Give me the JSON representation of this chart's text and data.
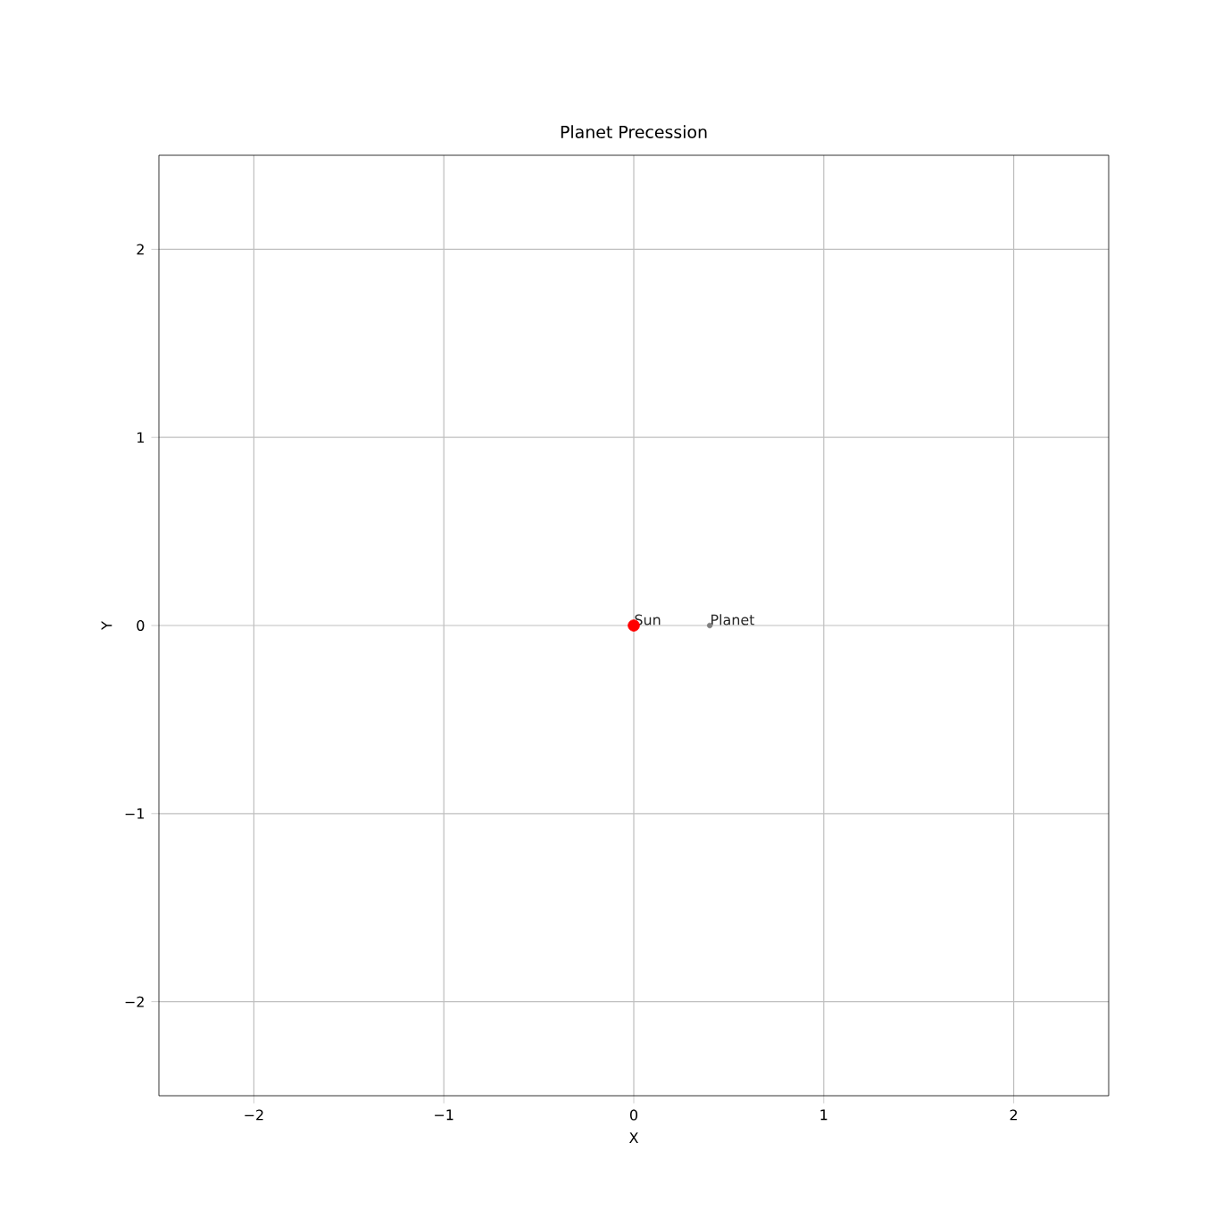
{
  "chart_data": {
    "type": "scatter",
    "title": "Planet Precession",
    "xlabel": "X",
    "ylabel": "Y",
    "xlim": [
      -2.5,
      2.5
    ],
    "ylim": [
      -2.5,
      2.5
    ],
    "xticks": [
      {
        "value": -2,
        "label": "−2"
      },
      {
        "value": -1,
        "label": "−1"
      },
      0,
      1,
      2
    ],
    "yticks": [
      {
        "value": -2,
        "label": "−2"
      },
      {
        "value": -1,
        "label": "−1"
      },
      0,
      1,
      2
    ],
    "grid": true,
    "marker": "circle",
    "series": [
      {
        "name": "Sun",
        "color": "#ff0000",
        "x": [
          0
        ],
        "values": [
          0
        ]
      },
      {
        "name": "Planet",
        "color": "#808080",
        "x": [
          0.4
        ],
        "values": [
          0
        ]
      }
    ]
  }
}
